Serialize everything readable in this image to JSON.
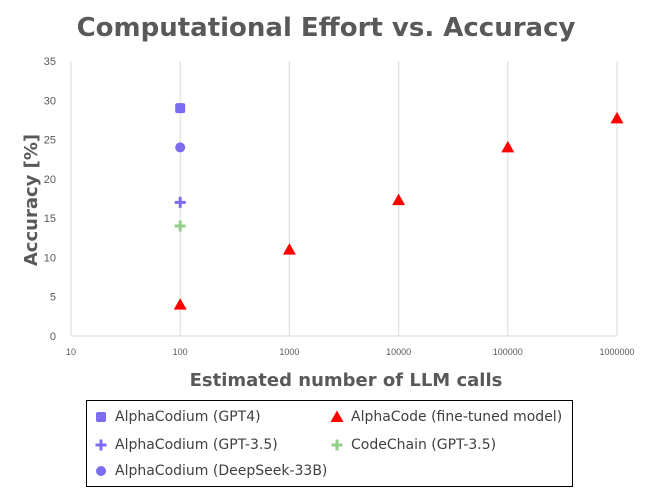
{
  "chart_data": {
    "type": "scatter",
    "title": "Computational Effort vs. Accuracy",
    "xlabel": "Estimated number of LLM calls",
    "ylabel": "Accuracy [%]",
    "x_scale": "log",
    "xlim": [
      10,
      1000000
    ],
    "ylim": [
      0,
      35
    ],
    "x_ticks": [
      "10",
      "100",
      "1000",
      "10000",
      "100000",
      "1000000"
    ],
    "y_ticks": [
      "0",
      "5",
      "10",
      "15",
      "20",
      "25",
      "30",
      "35"
    ],
    "grid": {
      "x": true,
      "y": false
    },
    "legend_position": "bottom",
    "series": [
      {
        "name": "AlphaCodium (GPT4)",
        "marker": "square",
        "color": "#7b6cf0",
        "points": [
          {
            "x": 100,
            "y": 29
          }
        ]
      },
      {
        "name": "AlphaCode (fine-tuned model)",
        "marker": "triangle",
        "color": "#ff0000",
        "points": [
          {
            "x": 100,
            "y": 4
          },
          {
            "x": 1000,
            "y": 11
          },
          {
            "x": 10000,
            "y": 17.3
          },
          {
            "x": 100000,
            "y": 24
          },
          {
            "x": 1000000,
            "y": 27.7
          }
        ]
      },
      {
        "name": "AlphaCodium (GPT-3.5)",
        "marker": "plus",
        "color": "#7b6cf0",
        "points": [
          {
            "x": 100,
            "y": 17
          }
        ]
      },
      {
        "name": "CodeChain (GPT-3.5)",
        "marker": "plus",
        "color": "#92d08a",
        "points": [
          {
            "x": 100,
            "y": 14
          }
        ]
      },
      {
        "name": "AlphaCodium (DeepSeek-33B)",
        "marker": "circle",
        "color": "#7b6cf0",
        "points": [
          {
            "x": 100,
            "y": 24
          }
        ]
      }
    ]
  }
}
